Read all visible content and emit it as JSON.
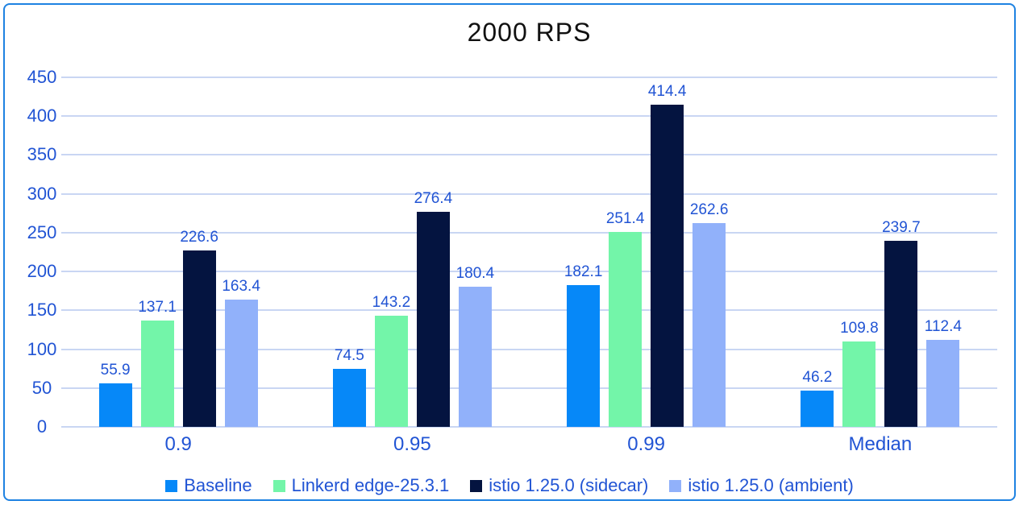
{
  "chart_data": {
    "type": "bar",
    "title": "2000 RPS",
    "categories": [
      "0.9",
      "0.95",
      "0.99",
      "Median"
    ],
    "series": [
      {
        "name": "Baseline",
        "color": "#0688f8",
        "values": [
          55.9,
          74.5,
          182.1,
          46.2
        ]
      },
      {
        "name": "Linkerd edge-25.3.1",
        "color": "#73f5a9",
        "values": [
          137.1,
          143.2,
          251.4,
          109.8
        ]
      },
      {
        "name": "istio 1.25.0 (sidecar)",
        "color": "#041440",
        "values": [
          226.6,
          276.4,
          414.4,
          239.7
        ]
      },
      {
        "name": "istio 1.25.0 (ambient)",
        "color": "#91b1fa",
        "values": [
          163.4,
          180.4,
          262.6,
          112.4
        ]
      }
    ],
    "ylim": [
      0,
      450
    ],
    "yticks": [
      0,
      50,
      100,
      150,
      200,
      250,
      300,
      350,
      400,
      450
    ],
    "grid": true,
    "legend_position": "bottom",
    "value_labels_decimals": 1
  },
  "colors": {
    "frame_border": "#1e82e2",
    "gridline": "#c9d6f3",
    "axis_text": "#2154d4",
    "title_text": "#111111",
    "background": "#ffffff"
  }
}
